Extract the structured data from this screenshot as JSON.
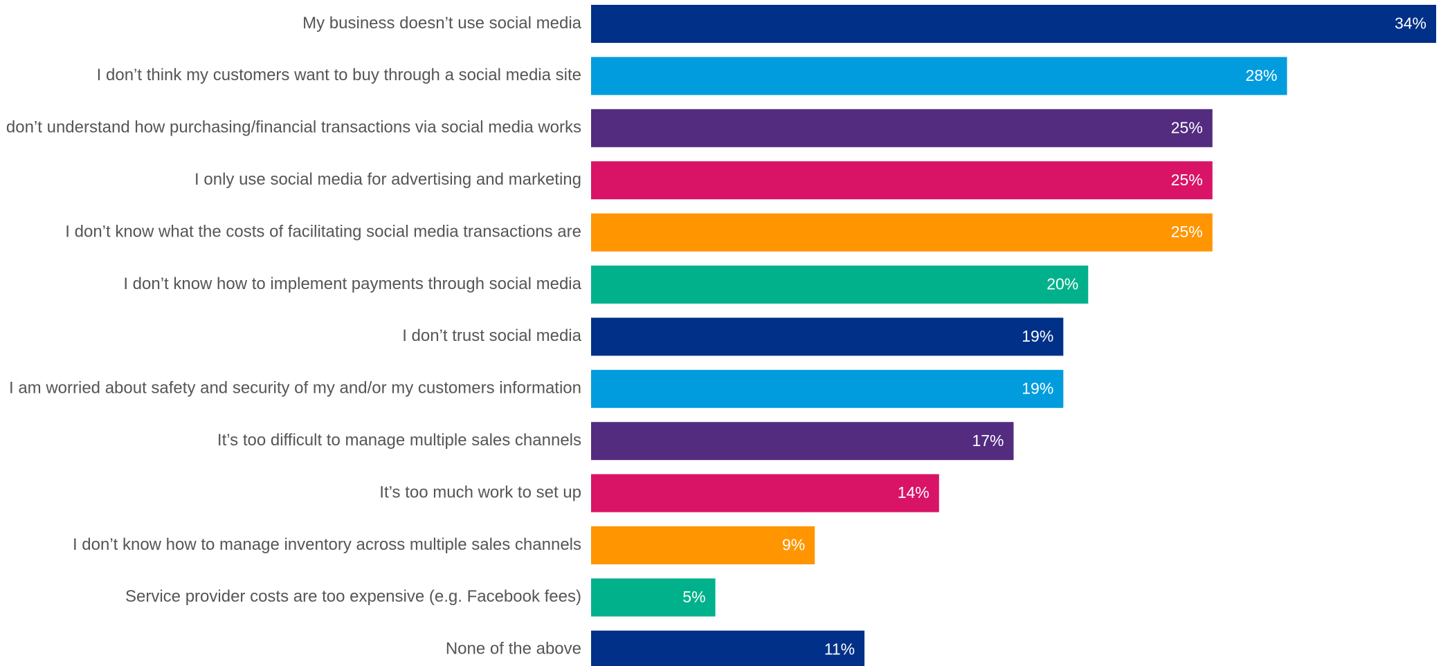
{
  "chart_data": {
    "type": "bar",
    "orientation": "horizontal",
    "title": "",
    "xlabel": "",
    "ylabel": "",
    "xlim": [
      0,
      34
    ],
    "grid": false,
    "legend": "none",
    "categories": [
      "My business doesn’t use social media",
      "I don’t think my customers want to buy through a social media site",
      "I don’t understand how purchasing/financial transactions via social media works",
      "I only use social media for advertising and marketing",
      "I don’t know what the costs of facilitating social media transactions are",
      "I don’t know how to implement payments through social media",
      "I don’t trust social media",
      "I am worried about safety and security of my and/or my customers information",
      "It’s too difficult to manage multiple sales channels",
      "It’s too much work to set up",
      "I don’t know how to manage inventory across multiple sales channels",
      "Service provider costs are too expensive (e.g. Facebook fees)",
      "None of the above"
    ],
    "values": [
      34,
      28,
      25,
      25,
      25,
      20,
      19,
      19,
      17,
      14,
      9,
      5,
      11
    ],
    "value_labels": [
      "34%",
      "28%",
      "25%",
      "25%",
      "25%",
      "20%",
      "19%",
      "19%",
      "17%",
      "14%",
      "9%",
      "5%",
      "11%"
    ],
    "colors": [
      "#003087",
      "#009CDE",
      "#532C80",
      "#D91467",
      "#FF9500",
      "#00B18B",
      "#003087",
      "#009CDE",
      "#532C80",
      "#D91467",
      "#FF9500",
      "#00B18B",
      "#003087"
    ]
  }
}
